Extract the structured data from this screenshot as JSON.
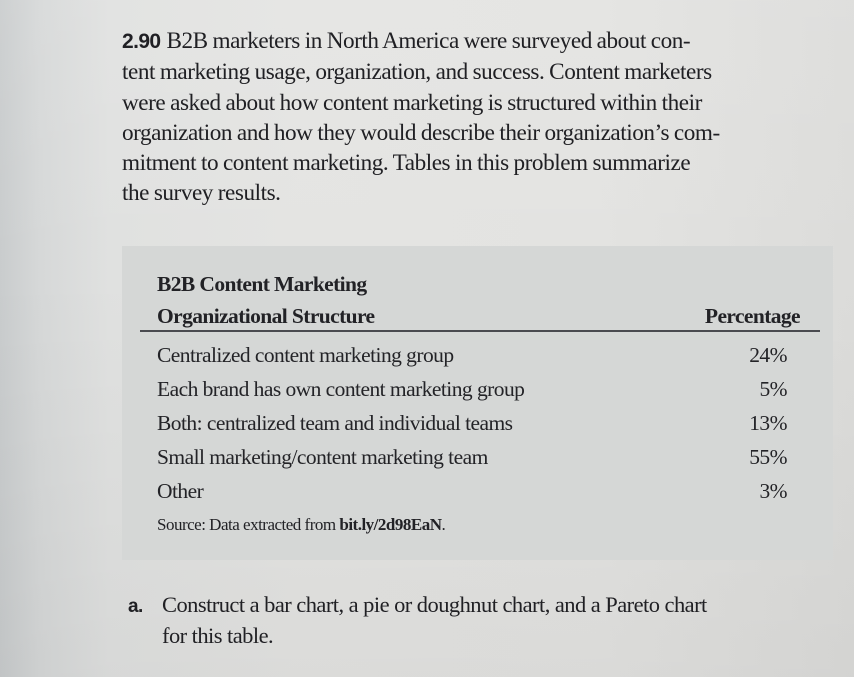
{
  "problem": {
    "number": "2.90",
    "lines": [
      "B2B marketers in North America were surveyed about con-",
      "tent marketing usage, organization, and success. Content marketers",
      "were asked about how content marketing is structured within their",
      "organization and how they would describe their organization’s com-",
      "mitment to content marketing. Tables in this problem summarize",
      "the survey results."
    ]
  },
  "table": {
    "header_line1": "B2B Content Marketing",
    "header_line2": "Organizational Structure",
    "header_value": "Percentage",
    "rows": [
      {
        "label": "Centralized content marketing group",
        "value": "24%"
      },
      {
        "label": "Each brand has own content marketing group",
        "value": "5%"
      },
      {
        "label": "Both: centralized team and individual teams",
        "value": "13%"
      },
      {
        "label": "Small marketing/content marketing team",
        "value": "55%"
      },
      {
        "label": "Other",
        "value": "3%"
      }
    ],
    "source_prefix": "Source: Data extracted from ",
    "source_link": "bit.ly/2d98EaN",
    "source_suffix": "."
  },
  "question": {
    "label": "a.",
    "line1": "Construct a bar chart, a pie or doughnut chart, and a Pareto chart",
    "line2": "for this table."
  },
  "colors": {
    "page_background": "#e2e2e0",
    "table_background": "#d5d7d6",
    "text": "#202024",
    "rule": "#4a4b50"
  }
}
